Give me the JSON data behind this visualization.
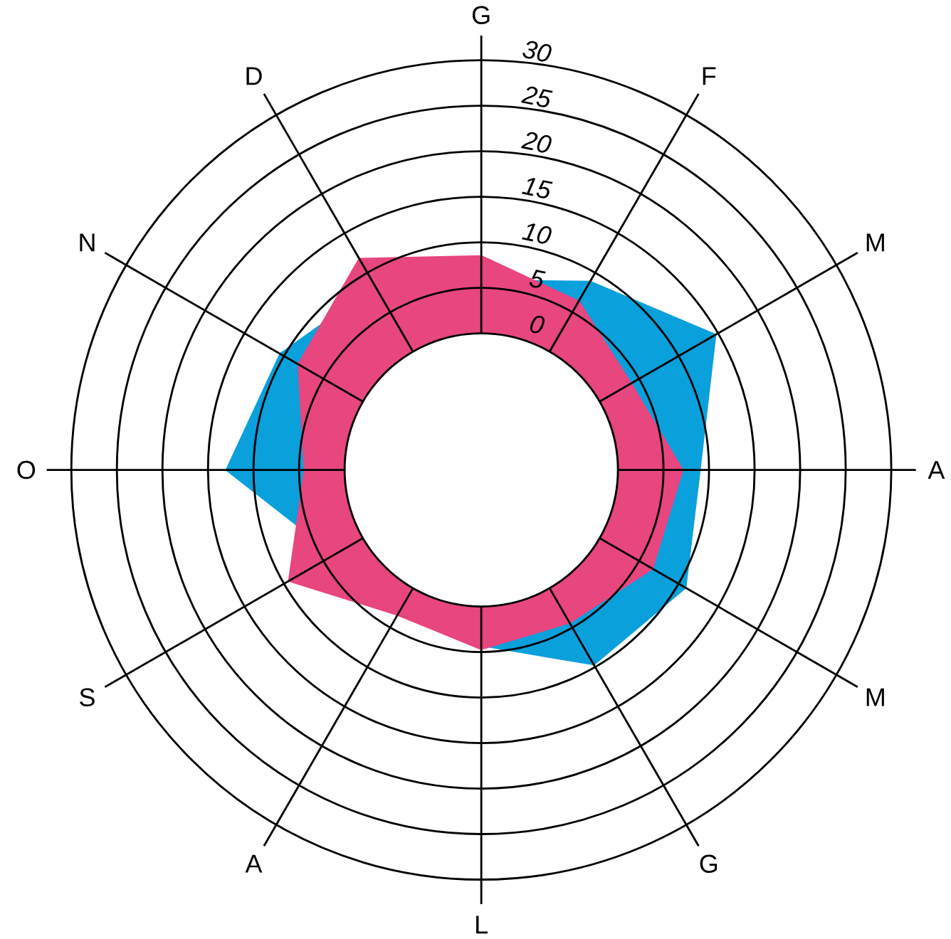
{
  "chart_data": {
    "type": "radar",
    "categories": [
      "G",
      "F",
      "M",
      "A",
      "M",
      "G",
      "L",
      "A",
      "S",
      "O",
      "N",
      "D"
    ],
    "series": [
      {
        "color": "#0aa0dc",
        "values": [
          5.8,
          8.9,
          14.7,
          9,
          10.9,
          9.7,
          4.3,
          3.4,
          3.6,
          13,
          10.5,
          8.3
        ]
      },
      {
        "color": "#e8467f",
        "values": [
          8.5,
          6.4,
          4,
          7.1,
          6.7,
          4.4,
          4.7,
          3.4,
          9.4,
          4.4,
          8.2,
          11.8
        ]
      }
    ],
    "ylim": [
      -15,
      30
    ],
    "yticks": [
      0,
      5,
      10,
      15,
      20,
      25,
      30
    ],
    "grid": true
  }
}
